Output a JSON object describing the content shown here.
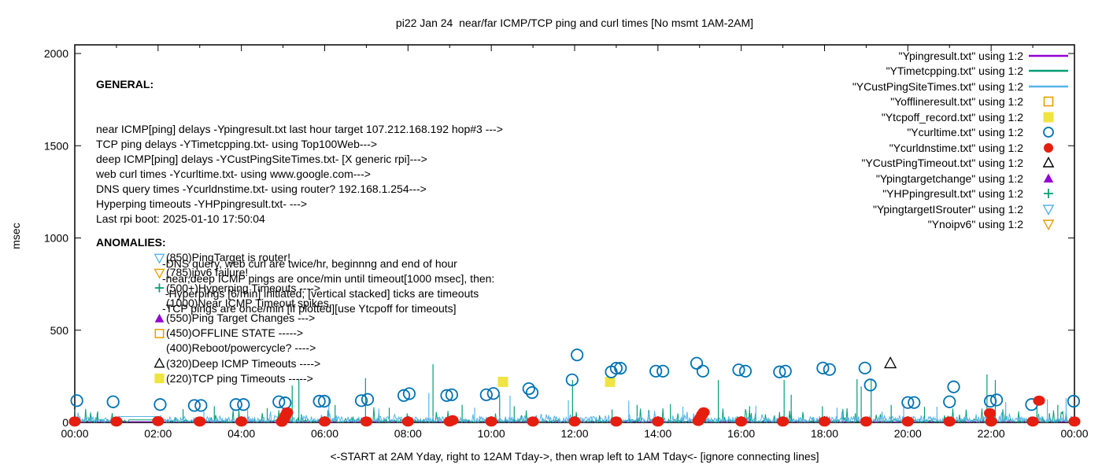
{
  "title": "pi22 Jan 24  near/far ICMP/TCP ping and curl times [No msmt 1AM-2AM]",
  "axes": {
    "ylabel": "msec",
    "xlabel": "<-START at 2AM Yday, right to 12AM Tday->, then wrap left to 1AM Tday<- [ignore connecting lines]"
  },
  "general": {
    "heading": "GENERAL:",
    "lines": [
      "near ICMP[ping] delays -Ypingresult.txt last hour target 107.212.168.192 hop#3 --->",
      "TCP ping delays -YTimetcpping.txt- using Top100Web--->",
      "deep ICMP[ping] delays -YCustPingSiteTimes.txt- [X generic rpi]--->",
      "web curl times -Ycurltime.txt- using www.google.com--->",
      "DNS query times -Ycurldnstime.txt- using router? 192.168.1.254--->",
      "Hyperping timeouts -YHPpingresult.txt- --->",
      "Last rpi boot: 2025-01-10 17:50:04"
    ],
    "indented_lines": [
      "-DNS query, web curl are twice/hr, beginnng and end of hour",
      "-near,deep ICMP pings are once/min until timeout[1000 msec], then:",
      " -Hyperpings [6/min] initiated; [vertical stacked] ticks are timeouts",
      "-TCP pings are once/min [if plotted][use Ytcpoff for timeouts]"
    ]
  },
  "anomalies": {
    "heading": "ANOMALIES:",
    "items": [
      {
        "symbol": "triangle-down-open",
        "color": "#56b4e9",
        "label": "(850)PingTarget is router!"
      },
      {
        "symbol": "triangle-down-open",
        "color": "#e69f00",
        "label": "(785)ipv6 failure!"
      },
      {
        "symbol": "plus",
        "color": "#009e73",
        "label": "(500+)Hyperping Timeouts ---->"
      },
      {
        "symbol": "none",
        "color": "",
        "label": "(1000)Near ICMP Timeout spikes"
      },
      {
        "symbol": "triangle-up-filled",
        "color": "#9400d3",
        "label": "(550)Ping Target Changes --->"
      },
      {
        "symbol": "square-open",
        "color": "#e69f00",
        "label": "(450)OFFLINE STATE ----->"
      },
      {
        "symbol": "none",
        "color": "",
        "label": "(400)Reboot/powercycle? ---->"
      },
      {
        "symbol": "triangle-up-open",
        "color": "#000000",
        "label": "(320)Deep ICMP Timeouts ---->"
      },
      {
        "symbol": "square-filled",
        "color": "#f0e442",
        "label": "(220)TCP ping Timeouts ----->"
      }
    ]
  },
  "legend": {
    "entries": [
      {
        "label": "\"Ypingresult.txt\" using 1:2",
        "symbol": "line",
        "color": "#9400d3"
      },
      {
        "label": "\"YTimetcpping.txt\" using 1:2",
        "symbol": "line",
        "color": "#009e73"
      },
      {
        "label": "\"YCustPingSiteTimes.txt\" using 1:2",
        "symbol": "line",
        "color": "#56b4e9"
      },
      {
        "label": "\"Yofflineresult.txt\" using 1:2",
        "symbol": "square-open",
        "color": "#e69f00"
      },
      {
        "label": "\"Ytcpoff_record.txt\" using 1:2",
        "symbol": "square-filled",
        "color": "#f0e442"
      },
      {
        "label": "\"Ycurltime.txt\" using 1:2",
        "symbol": "circle-open",
        "color": "#0072b2"
      },
      {
        "label": "\"Ycurldnstime.txt\" using 1:2",
        "symbol": "circle-filled",
        "color": "#e51e10"
      },
      {
        "label": "\"YCustPingTimeout.txt\" using 1:2",
        "symbol": "triangle-up-open",
        "color": "#000000"
      },
      {
        "label": "\"Ypingtargetchange\" using 1:2",
        "symbol": "triangle-up-filled",
        "color": "#9400d3"
      },
      {
        "label": "\"YHPpingresult.txt\" using 1:2",
        "symbol": "plus",
        "color": "#009e73"
      },
      {
        "label": "\"YpingtargetISrouter\" using 1:2",
        "symbol": "triangle-down-open",
        "color": "#56b4e9"
      },
      {
        "label": "\"Ynoipv6\" using 1:2",
        "symbol": "triangle-down-open",
        "color": "#e69f00"
      }
    ]
  },
  "chart_data": {
    "type": "line+scatter",
    "x_unit": "hour_of_day",
    "y_unit": "msec",
    "x_range": [
      0,
      24
    ],
    "y_range": [
      0,
      2047
    ],
    "y_ticks": [
      0,
      500,
      1000,
      1500,
      2000
    ],
    "x_tick_hours": [
      0,
      2,
      4,
      6,
      8,
      10,
      12,
      14,
      16,
      18,
      20,
      22,
      24
    ],
    "x_tick_labels": [
      "00:00",
      "02:00",
      "04:00",
      "06:00",
      "08:00",
      "10:00",
      "12:00",
      "14:00",
      "16:00",
      "18:00",
      "20:00",
      "22:00",
      "00:00"
    ],
    "measurement_gap_note": "No msmt 1AM-2AM, connecting lines drawn flat across 01:00-02:00",
    "series": [
      {
        "name": "Ypingresult.txt",
        "style": "line",
        "color": "#9400d3",
        "gap": [
          1.07,
          2.0
        ],
        "gap_level": 4,
        "noise": {
          "seed": 101,
          "base": 2.5,
          "amp": 3,
          "burst_p": 0,
          "burst_amp": 0
        },
        "spikes": []
      },
      {
        "name": "YTimetcpping.txt",
        "style": "line",
        "color": "#009e73",
        "gap": [
          1.3,
          2.2
        ],
        "gap_level": 14,
        "noise": {
          "seed": 7,
          "base": 1,
          "amp": 16,
          "burst_p": 0.09,
          "burst_amp": 70
        },
        "spikes": [
          [
            0.55,
            60
          ],
          [
            2.6,
            72
          ],
          [
            3.35,
            88
          ],
          [
            4.62,
            78
          ],
          [
            5.22,
            200
          ],
          [
            5.38,
            232
          ],
          [
            6.25,
            95
          ],
          [
            6.98,
            240
          ],
          [
            7.55,
            80
          ],
          [
            8.6,
            315
          ],
          [
            9.3,
            95
          ],
          [
            10.2,
            148
          ],
          [
            10.55,
            88
          ],
          [
            11.95,
            230
          ],
          [
            12.9,
            70
          ],
          [
            13.5,
            95
          ],
          [
            14.3,
            100
          ],
          [
            15.45,
            230
          ],
          [
            16.2,
            88
          ],
          [
            17.03,
            230
          ],
          [
            17.2,
            150
          ],
          [
            17.95,
            88
          ],
          [
            18.78,
            235
          ],
          [
            18.88,
            195
          ],
          [
            19.12,
            230
          ],
          [
            19.6,
            95
          ],
          [
            20.4,
            85
          ],
          [
            21.9,
            260
          ],
          [
            22.1,
            230
          ],
          [
            23.1,
            80
          ],
          [
            23.6,
            95
          ]
        ]
      },
      {
        "name": "YCustPingSiteTimes.txt",
        "style": "line",
        "color": "#56b4e9",
        "gap": [
          1.07,
          2.0
        ],
        "gap_level": 32,
        "noise": {
          "seed": 23,
          "base": 4,
          "amp": 30,
          "burst_p": 0.05,
          "burst_amp": 40
        },
        "spikes": [
          [
            3.1,
            60
          ],
          [
            4.15,
            70
          ],
          [
            6.1,
            140
          ],
          [
            7.3,
            75
          ],
          [
            8.5,
            160
          ],
          [
            9.6,
            80
          ],
          [
            10.45,
            145
          ],
          [
            11.85,
            120
          ],
          [
            13.3,
            118
          ],
          [
            14.6,
            85
          ],
          [
            16.35,
            90
          ],
          [
            18.3,
            80
          ],
          [
            19.9,
            100
          ],
          [
            20.7,
            85
          ],
          [
            22.35,
            110
          ],
          [
            23.35,
            125
          ],
          [
            23.8,
            132
          ]
        ]
      },
      {
        "name": "Yofflineresult.txt",
        "style": "points",
        "marker": "square-open",
        "color": "#e69f00",
        "points": []
      },
      {
        "name": "Ytcpoff_record.txt",
        "style": "points",
        "marker": "square-filled",
        "color": "#f0e442",
        "points": [
          [
            10.28,
            220
          ],
          [
            12.85,
            220
          ]
        ]
      },
      {
        "name": "Ycurltime.txt",
        "style": "points",
        "marker": "circle-open",
        "color": "#0072b2",
        "points": [
          [
            0.05,
            118
          ],
          [
            0.92,
            112
          ],
          [
            2.05,
            97
          ],
          [
            2.87,
            92
          ],
          [
            3.03,
            92
          ],
          [
            3.87,
            97
          ],
          [
            4.05,
            97
          ],
          [
            4.9,
            112
          ],
          [
            5.05,
            106
          ],
          [
            5.87,
            115
          ],
          [
            5.99,
            115
          ],
          [
            6.88,
            118
          ],
          [
            7.03,
            125
          ],
          [
            7.9,
            146
          ],
          [
            8.03,
            156
          ],
          [
            8.93,
            146
          ],
          [
            9.05,
            150
          ],
          [
            9.88,
            150
          ],
          [
            10.05,
            157
          ],
          [
            10.9,
            183
          ],
          [
            10.98,
            162
          ],
          [
            11.94,
            231
          ],
          [
            12.06,
            366
          ],
          [
            12.88,
            274
          ],
          [
            13.0,
            294
          ],
          [
            13.1,
            294
          ],
          [
            13.95,
            278
          ],
          [
            14.12,
            278
          ],
          [
            14.93,
            321
          ],
          [
            15.08,
            278
          ],
          [
            15.94,
            285
          ],
          [
            16.1,
            278
          ],
          [
            16.92,
            274
          ],
          [
            17.06,
            278
          ],
          [
            17.96,
            295
          ],
          [
            18.12,
            287
          ],
          [
            18.97,
            295
          ],
          [
            19.1,
            203
          ],
          [
            20.0,
            108
          ],
          [
            20.15,
            108
          ],
          [
            21.0,
            112
          ],
          [
            21.1,
            193
          ],
          [
            21.98,
            115
          ],
          [
            22.13,
            122
          ],
          [
            22.97,
            97
          ],
          [
            23.98,
            115
          ]
        ]
      },
      {
        "name": "Ycurldnstime.txt",
        "style": "points",
        "marker": "circle-filled",
        "color": "#e51e10",
        "points": [
          [
            0,
            5
          ],
          [
            1,
            5
          ],
          [
            2,
            7
          ],
          [
            3,
            5
          ],
          [
            4,
            5
          ],
          [
            4.97,
            4
          ],
          [
            5.02,
            18
          ],
          [
            5.06,
            38
          ],
          [
            5.1,
            55
          ],
          [
            6,
            5
          ],
          [
            7,
            5
          ],
          [
            8,
            5
          ],
          [
            9,
            5
          ],
          [
            9.07,
            12
          ],
          [
            10,
            5
          ],
          [
            11,
            5
          ],
          [
            12,
            5
          ],
          [
            13,
            5
          ],
          [
            14,
            5
          ],
          [
            14.97,
            8
          ],
          [
            15.02,
            25
          ],
          [
            15.06,
            42
          ],
          [
            15.1,
            55
          ],
          [
            16,
            5
          ],
          [
            17,
            5
          ],
          [
            18,
            5
          ],
          [
            19,
            5
          ],
          [
            20,
            5
          ],
          [
            21,
            5
          ],
          [
            21.97,
            50
          ],
          [
            22,
            5
          ],
          [
            23,
            5
          ],
          [
            23.15,
            118
          ],
          [
            24,
            5
          ]
        ]
      },
      {
        "name": "YCustPingTimeout.txt",
        "style": "points",
        "marker": "triangle-up-open",
        "color": "#000000",
        "points": [
          [
            19.58,
            320
          ]
        ]
      },
      {
        "name": "Ypingtargetchange",
        "style": "points",
        "marker": "triangle-up-filled",
        "color": "#9400d3",
        "points": []
      },
      {
        "name": "YHPpingresult.txt",
        "style": "points",
        "marker": "plus",
        "color": "#009e73",
        "points": []
      },
      {
        "name": "YpingtargetISrouter",
        "style": "points",
        "marker": "triangle-down-open",
        "color": "#56b4e9",
        "points": []
      },
      {
        "name": "Ynoipv6",
        "style": "points",
        "marker": "triangle-down-open",
        "color": "#e69f00",
        "points": []
      }
    ]
  }
}
